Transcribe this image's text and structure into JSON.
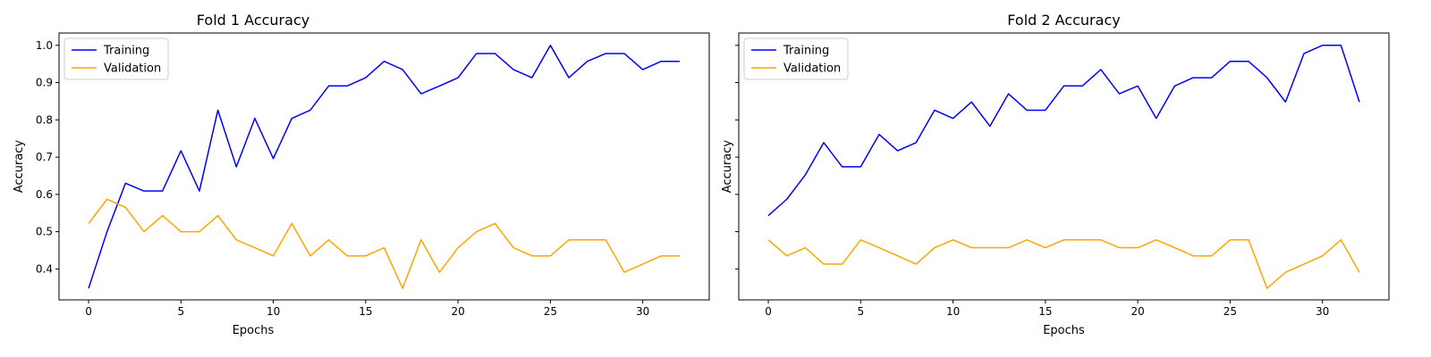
{
  "chart_data": [
    {
      "type": "line",
      "title": "Fold 1 Accuracy",
      "xlabel": "Epochs",
      "ylabel": "Accuracy",
      "xlim": [
        -1.6,
        33.6
      ],
      "ylim": [
        0.317,
        1.033
      ],
      "xticks": [
        0,
        5,
        10,
        15,
        20,
        25,
        30
      ],
      "yticks": [
        0.4,
        0.5,
        0.6,
        0.7,
        0.8,
        0.9,
        1.0
      ],
      "legend_position": "top-left",
      "x": [
        0,
        1,
        2,
        3,
        4,
        5,
        6,
        7,
        8,
        9,
        10,
        11,
        12,
        13,
        14,
        15,
        16,
        17,
        18,
        19,
        20,
        21,
        22,
        23,
        24,
        25,
        26,
        27,
        28,
        29,
        30,
        31,
        32
      ],
      "series": [
        {
          "name": "Training",
          "color": "#0000ff",
          "values": [
            0.348,
            0.5,
            0.63,
            0.609,
            0.609,
            0.717,
            0.609,
            0.826,
            0.674,
            0.804,
            0.696,
            0.804,
            0.826,
            0.891,
            0.891,
            0.913,
            0.957,
            0.935,
            0.87,
            0.891,
            0.913,
            0.978,
            0.978,
            0.935,
            0.913,
            1.0,
            0.913,
            0.957,
            0.978,
            0.978,
            0.935,
            0.957,
            0.957
          ]
        },
        {
          "name": "Validation",
          "color": "#ffa500",
          "values": [
            0.522,
            0.587,
            0.565,
            0.5,
            0.543,
            0.5,
            0.5,
            0.543,
            0.478,
            0.457,
            0.435,
            0.522,
            0.435,
            0.478,
            0.435,
            0.435,
            0.457,
            0.348,
            0.478,
            0.391,
            0.457,
            0.5,
            0.522,
            0.457,
            0.435,
            0.435,
            0.478,
            0.478,
            0.478,
            0.391,
            0.413,
            0.435,
            0.435
          ]
        }
      ]
    },
    {
      "type": "line",
      "title": "Fold 2 Accuracy",
      "xlabel": "Epochs",
      "ylabel": "Accuracy",
      "xlim": [
        -1.6,
        33.6
      ],
      "ylim": [
        0.317,
        1.033
      ],
      "xticks": [
        0,
        5,
        10,
        15,
        20,
        25,
        30
      ],
      "yticks": [
        0.4,
        0.5,
        0.6,
        0.7,
        0.8,
        0.9,
        1.0
      ],
      "show_yticklabels": false,
      "legend_position": "top-left",
      "x": [
        0,
        1,
        2,
        3,
        4,
        5,
        6,
        7,
        8,
        9,
        10,
        11,
        12,
        13,
        14,
        15,
        16,
        17,
        18,
        19,
        20,
        21,
        22,
        23,
        24,
        25,
        26,
        27,
        28,
        29,
        30,
        31,
        32
      ],
      "series": [
        {
          "name": "Training",
          "color": "#0000ff",
          "values": [
            0.543,
            0.587,
            0.652,
            0.739,
            0.674,
            0.674,
            0.761,
            0.717,
            0.739,
            0.826,
            0.804,
            0.848,
            0.783,
            0.87,
            0.826,
            0.826,
            0.891,
            0.891,
            0.935,
            0.87,
            0.891,
            0.804,
            0.891,
            0.913,
            0.913,
            0.957,
            0.957,
            0.913,
            0.848,
            0.978,
            1.0,
            1.0,
            0.848
          ]
        },
        {
          "name": "Validation",
          "color": "#ffa500",
          "values": [
            0.478,
            0.435,
            0.457,
            0.413,
            0.413,
            0.478,
            0.457,
            0.435,
            0.413,
            0.457,
            0.478,
            0.457,
            0.457,
            0.457,
            0.478,
            0.457,
            0.478,
            0.478,
            0.478,
            0.457,
            0.457,
            0.478,
            0.457,
            0.435,
            0.435,
            0.478,
            0.478,
            0.348,
            0.391,
            0.413,
            0.435,
            0.478,
            0.391
          ]
        }
      ]
    }
  ]
}
